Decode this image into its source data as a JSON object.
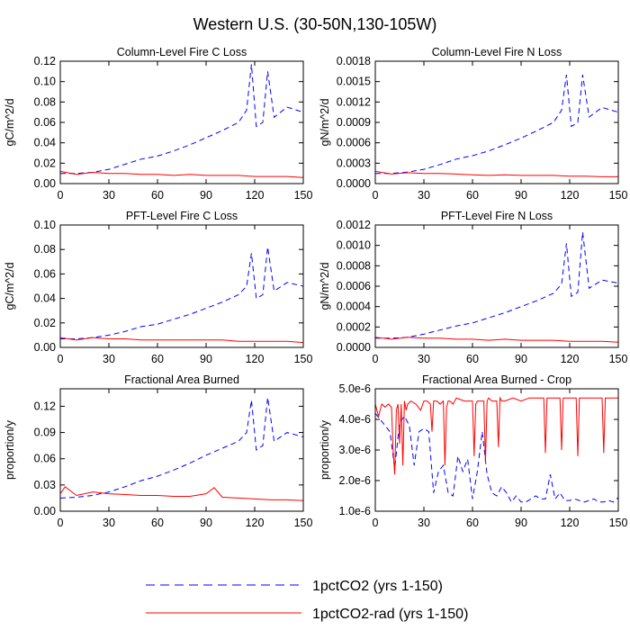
{
  "title": "Western U.S. (30-50N,130-105W)",
  "colors": {
    "series_1pctCO2": "#0000ff",
    "series_1pctCO2_rad": "#ff0000",
    "axis": "#000000",
    "background": "#ffffff"
  },
  "legend": {
    "placement": "bottom-center",
    "items": [
      {
        "label": "1pctCO2 (yrs 1-150)",
        "style": "dashed",
        "color": "#0000ff"
      },
      {
        "label": "1pctCO2-rad (yrs 1-150)",
        "style": "solid",
        "color": "#ff0000"
      }
    ]
  },
  "chart_data": [
    {
      "type": "line",
      "title": "Column-Level Fire C Loss",
      "xlabel": "",
      "ylabel": "gC/m^2/d",
      "xlim": [
        0,
        150
      ],
      "ylim": [
        0,
        0.12
      ],
      "xticks": [
        0,
        30,
        60,
        90,
        120,
        150
      ],
      "yticks": [
        0,
        0.02,
        0.04,
        0.06,
        0.08,
        0.1,
        0.12
      ],
      "ytick_labels": [
        "0.00",
        "0.02",
        "0.04",
        "0.06",
        "0.08",
        "0.10",
        "0.12"
      ],
      "series": [
        {
          "name": "1pctCO2 (yrs 1-150)",
          "x": [
            0,
            10,
            20,
            30,
            40,
            50,
            60,
            70,
            80,
            90,
            100,
            110,
            115,
            118,
            121,
            125,
            128,
            132,
            140,
            150
          ],
          "y": [
            0.01,
            0.01,
            0.011,
            0.014,
            0.019,
            0.024,
            0.027,
            0.032,
            0.038,
            0.045,
            0.052,
            0.06,
            0.072,
            0.117,
            0.056,
            0.06,
            0.11,
            0.065,
            0.075,
            0.07
          ]
        },
        {
          "name": "1pctCO2-rad (yrs 1-150)",
          "x": [
            0,
            10,
            20,
            30,
            40,
            50,
            60,
            70,
            80,
            90,
            100,
            110,
            120,
            130,
            140,
            150
          ],
          "y": [
            0.012,
            0.009,
            0.011,
            0.01,
            0.01,
            0.009,
            0.009,
            0.008,
            0.009,
            0.008,
            0.008,
            0.008,
            0.007,
            0.007,
            0.007,
            0.006
          ]
        }
      ]
    },
    {
      "type": "line",
      "title": "Column-Level Fire N Loss",
      "xlabel": "",
      "ylabel": "gN/m^2/d",
      "xlim": [
        0,
        150
      ],
      "ylim": [
        0,
        0.0018
      ],
      "xticks": [
        0,
        30,
        60,
        90,
        120,
        150
      ],
      "yticks": [
        0,
        0.0003,
        0.0006,
        0.0009,
        0.0012,
        0.0015,
        0.0018
      ],
      "ytick_labels": [
        "0.0000",
        "0.0003",
        "0.0006",
        "0.0009",
        "0.0012",
        "0.0015",
        "0.0018"
      ],
      "series": [
        {
          "name": "1pctCO2 (yrs 1-150)",
          "x": [
            0,
            10,
            20,
            30,
            40,
            50,
            60,
            70,
            80,
            90,
            100,
            110,
            115,
            118,
            121,
            125,
            128,
            132,
            140,
            150
          ],
          "y": [
            0.00015,
            0.00015,
            0.00017,
            0.00021,
            0.00028,
            0.00036,
            0.00041,
            0.00048,
            0.00057,
            0.00067,
            0.00078,
            0.0009,
            0.00108,
            0.0016,
            0.00084,
            0.0009,
            0.0016,
            0.00098,
            0.00112,
            0.00105
          ]
        },
        {
          "name": "1pctCO2-rad (yrs 1-150)",
          "x": [
            0,
            10,
            20,
            30,
            40,
            50,
            60,
            70,
            80,
            90,
            100,
            110,
            120,
            130,
            140,
            150
          ],
          "y": [
            0.00018,
            0.00014,
            0.00016,
            0.00015,
            0.00015,
            0.00014,
            0.00013,
            0.00012,
            0.00013,
            0.00012,
            0.00012,
            0.00012,
            0.00011,
            0.00011,
            0.0001,
            0.0001
          ]
        }
      ]
    },
    {
      "type": "line",
      "title": "PFT-Level Fire C Loss",
      "xlabel": "",
      "ylabel": "gC/m^2/d",
      "xlim": [
        0,
        150
      ],
      "ylim": [
        0,
        0.1
      ],
      "xticks": [
        0,
        30,
        60,
        90,
        120,
        150
      ],
      "yticks": [
        0,
        0.02,
        0.04,
        0.06,
        0.08,
        0.1
      ],
      "ytick_labels": [
        "0.00",
        "0.02",
        "0.04",
        "0.06",
        "0.08",
        "0.10"
      ],
      "series": [
        {
          "name": "1pctCO2 (yrs 1-150)",
          "x": [
            0,
            10,
            20,
            30,
            40,
            50,
            60,
            70,
            80,
            90,
            100,
            110,
            115,
            118,
            121,
            125,
            128,
            132,
            140,
            150
          ],
          "y": [
            0.007,
            0.007,
            0.008,
            0.01,
            0.013,
            0.017,
            0.019,
            0.023,
            0.027,
            0.032,
            0.037,
            0.043,
            0.05,
            0.077,
            0.04,
            0.043,
            0.082,
            0.046,
            0.053,
            0.05
          ]
        },
        {
          "name": "1pctCO2-rad (yrs 1-150)",
          "x": [
            0,
            10,
            20,
            30,
            40,
            50,
            60,
            70,
            80,
            90,
            100,
            110,
            120,
            130,
            140,
            150
          ],
          "y": [
            0.008,
            0.006,
            0.008,
            0.007,
            0.007,
            0.006,
            0.006,
            0.006,
            0.006,
            0.006,
            0.006,
            0.005,
            0.005,
            0.005,
            0.005,
            0.004
          ]
        }
      ]
    },
    {
      "type": "line",
      "title": "PFT-Level Fire N Loss",
      "xlabel": "",
      "ylabel": "gN/m^2/d",
      "xlim": [
        0,
        150
      ],
      "ylim": [
        0,
        0.0012
      ],
      "xticks": [
        0,
        30,
        60,
        90,
        120,
        150
      ],
      "yticks": [
        0,
        0.0002,
        0.0004,
        0.0006,
        0.0008,
        0.001,
        0.0012
      ],
      "ytick_labels": [
        "0.0000",
        "0.0002",
        "0.0004",
        "0.0006",
        "0.0008",
        "0.0010",
        "0.0012"
      ],
      "series": [
        {
          "name": "1pctCO2 (yrs 1-150)",
          "x": [
            0,
            10,
            20,
            30,
            40,
            50,
            60,
            70,
            80,
            90,
            100,
            110,
            115,
            118,
            121,
            125,
            128,
            132,
            140,
            150
          ],
          "y": [
            9e-05,
            9e-05,
            0.0001,
            0.00013,
            0.00017,
            0.00021,
            0.00024,
            0.00029,
            0.00034,
            0.0004,
            0.00046,
            0.00053,
            0.00062,
            0.00102,
            0.0005,
            0.00054,
            0.00113,
            0.00058,
            0.00066,
            0.00063
          ]
        },
        {
          "name": "1pctCO2-rad (yrs 1-150)",
          "x": [
            0,
            10,
            20,
            30,
            40,
            50,
            60,
            70,
            80,
            90,
            100,
            110,
            120,
            130,
            140,
            150
          ],
          "y": [
            0.0001,
            8e-05,
            0.0001,
            9e-05,
            9e-05,
            8e-05,
            8e-05,
            7e-05,
            8e-05,
            7e-05,
            7e-05,
            7e-05,
            6e-05,
            6e-05,
            6e-05,
            5e-05
          ]
        }
      ]
    },
    {
      "type": "line",
      "title": "Fractional Area Burned",
      "xlabel": "",
      "ylabel": "proportion/y",
      "xlim": [
        0,
        150
      ],
      "ylim": [
        0,
        0.14
      ],
      "xticks": [
        0,
        30,
        60,
        90,
        120,
        150
      ],
      "yticks": [
        0,
        0.03,
        0.06,
        0.09,
        0.12
      ],
      "ytick_labels": [
        "0.00",
        "0.03",
        "0.06",
        "0.09",
        "0.12"
      ],
      "series": [
        {
          "name": "1pctCO2 (yrs 1-150)",
          "x": [
            0,
            10,
            20,
            30,
            40,
            50,
            60,
            70,
            80,
            90,
            100,
            110,
            115,
            118,
            121,
            125,
            128,
            132,
            140,
            150
          ],
          "y": [
            0.015,
            0.016,
            0.018,
            0.022,
            0.028,
            0.035,
            0.04,
            0.047,
            0.055,
            0.064,
            0.072,
            0.08,
            0.09,
            0.127,
            0.07,
            0.075,
            0.13,
            0.08,
            0.09,
            0.085
          ]
        },
        {
          "name": "1pctCO2-rad (yrs 1-150)",
          "x": [
            0,
            3,
            10,
            20,
            30,
            40,
            50,
            60,
            70,
            80,
            90,
            95,
            100,
            110,
            120,
            130,
            140,
            150
          ],
          "y": [
            0.02,
            0.028,
            0.018,
            0.022,
            0.02,
            0.019,
            0.018,
            0.018,
            0.017,
            0.017,
            0.02,
            0.027,
            0.016,
            0.015,
            0.014,
            0.013,
            0.013,
            0.012
          ]
        }
      ]
    },
    {
      "type": "line",
      "title": "Fractional Area Burned - Crop",
      "xlabel": "",
      "ylabel": "proportion/y",
      "xlim": [
        0,
        150
      ],
      "ylim": [
        1e-06,
        5e-06
      ],
      "xticks": [
        0,
        30,
        60,
        90,
        120,
        150
      ],
      "yticks": [
        1e-06,
        2e-06,
        3e-06,
        4e-06,
        5e-06
      ],
      "ytick_labels": [
        "1.0e-6",
        "2.0e-6",
        "3.0e-6",
        "4.0e-6",
        "5.0e-6"
      ],
      "series": [
        {
          "name": "1pctCO2 (yrs 1-150)",
          "x": [
            0,
            3,
            6,
            9,
            12,
            15,
            18,
            21,
            24,
            27,
            30,
            33,
            36,
            39,
            42,
            45,
            48,
            51,
            54,
            57,
            60,
            63,
            66,
            69,
            72,
            75,
            78,
            81,
            84,
            87,
            90,
            93,
            96,
            99,
            102,
            105,
            108,
            111,
            114,
            117,
            120,
            123,
            126,
            129,
            132,
            135,
            138,
            141,
            144,
            147,
            150
          ],
          "y": [
            4.2e-06,
            4e-06,
            3.8e-06,
            3.6e-06,
            2.4e-06,
            3.9e-06,
            4.1e-06,
            3.8e-06,
            2.5e-06,
            3.6e-06,
            3.7e-06,
            3.6e-06,
            1.6e-06,
            2.3e-06,
            2.5e-06,
            1.6e-06,
            1.5e-06,
            2.8e-06,
            2.3e-06,
            2.7e-06,
            1.4e-06,
            2.3e-06,
            3.6e-06,
            2.2e-06,
            1.6e-06,
            1.5e-06,
            1.8e-06,
            1.6e-06,
            1.3e-06,
            1.5e-06,
            1.3e-06,
            1.3e-06,
            1.4e-06,
            1.5e-06,
            1.4e-06,
            1.4e-06,
            2.2e-06,
            1.4e-06,
            1.6e-06,
            1.35e-06,
            1.35e-06,
            1.4e-06,
            1.35e-06,
            1.3e-06,
            1.35e-06,
            1.4e-06,
            1.3e-06,
            1.3e-06,
            1.35e-06,
            1.3e-06,
            1.45e-06
          ]
        },
        {
          "name": "1pctCO2-rad (yrs 1-150)",
          "x": [
            0,
            2,
            4,
            6,
            8,
            10,
            11,
            12,
            13,
            14,
            15,
            16,
            17,
            18,
            19,
            20,
            22,
            25,
            28,
            30,
            32,
            34,
            35,
            36,
            38,
            40,
            42,
            43,
            44,
            45,
            46,
            48,
            50,
            55,
            58,
            60,
            61,
            62,
            63,
            65,
            67,
            68,
            69,
            70,
            72,
            75,
            76,
            77,
            78,
            80,
            85,
            90,
            95,
            100,
            104,
            105,
            106,
            108,
            110,
            112,
            114,
            115,
            116,
            118,
            120,
            122,
            124,
            125,
            126,
            128,
            130,
            135,
            140,
            141,
            142,
            145,
            150
          ],
          "y": [
            4.5e-06,
            4.1e-06,
            4.5e-06,
            4.4e-06,
            4.5e-06,
            4.4e-06,
            3e-06,
            2.2e-06,
            4.3e-06,
            4.5e-06,
            3.2e-06,
            4.5e-06,
            2.5e-06,
            4.6e-06,
            4.3e-06,
            4.5e-06,
            4.6e-06,
            4.5e-06,
            4.3e-06,
            4.6e-06,
            4.6e-06,
            4.5e-06,
            3.6e-06,
            4.6e-06,
            4.6e-06,
            4.5e-06,
            4.6e-06,
            2.5e-06,
            4.4e-06,
            4.6e-06,
            4.6e-06,
            4.5e-06,
            4.7e-06,
            4.6e-06,
            4.6e-06,
            4.6e-06,
            2.8e-06,
            4.5e-06,
            4.6e-06,
            4.6e-06,
            4.6e-06,
            2.6e-06,
            4.6e-06,
            4.7e-06,
            4.6e-06,
            4.6e-06,
            3.1e-06,
            4.7e-06,
            4.6e-06,
            4.6e-06,
            4.7e-06,
            4.6e-06,
            4.7e-06,
            4.7e-06,
            4.7e-06,
            2.9e-06,
            4.7e-06,
            4.7e-06,
            4.7e-06,
            4.7e-06,
            4.7e-06,
            3e-06,
            4.7e-06,
            4.7e-06,
            4.7e-06,
            4.7e-06,
            4.7e-06,
            2.8e-06,
            4.7e-06,
            4.7e-06,
            4.7e-06,
            4.7e-06,
            4.7e-06,
            2.9e-06,
            4.7e-06,
            4.7e-06,
            4.7e-06
          ]
        }
      ]
    }
  ]
}
